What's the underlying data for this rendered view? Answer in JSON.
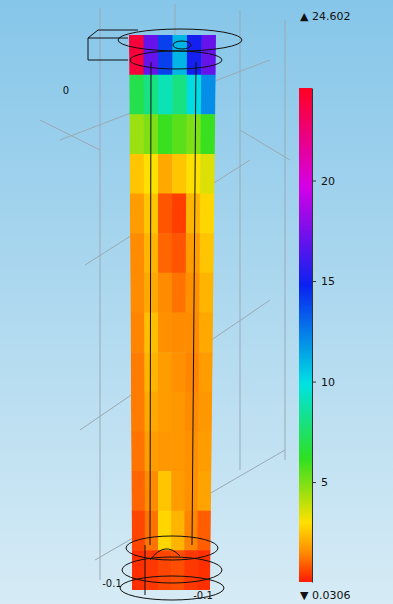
{
  "chart_data": {
    "type": "surface",
    "cells": [
      [
        24,
        17,
        14,
        11,
        15,
        17
      ],
      [
        7,
        8,
        9,
        8,
        10,
        12
      ],
      [
        4.5,
        5,
        6,
        5.5,
        5,
        6
      ],
      [
        2.5,
        3,
        2,
        2.5,
        3,
        3.5
      ],
      [
        1.8,
        2.5,
        0.8,
        0.5,
        2.2,
        2.8
      ],
      [
        1.5,
        2.2,
        1,
        0.8,
        1.8,
        2.5
      ],
      [
        1.5,
        2,
        1.5,
        1.2,
        1.6,
        2.2
      ],
      [
        1.4,
        2.4,
        1.6,
        1.5,
        1.5,
        2
      ],
      [
        1.3,
        2.2,
        1.8,
        1.6,
        1.4,
        1.8
      ],
      [
        1.3,
        2,
        1.8,
        1.7,
        1.5,
        1.7
      ],
      [
        1.2,
        1.8,
        1.7,
        1.7,
        1.6,
        1.8
      ],
      [
        1,
        1.5,
        2.5,
        1.8,
        1.6,
        1.9
      ],
      [
        0.6,
        1.2,
        2.8,
        2.2,
        1.4,
        0.9
      ],
      [
        0.3,
        0.4,
        0.6,
        0.7,
        0.4,
        0.3
      ]
    ],
    "colorbar": {
      "range": [
        {
          "value": 0.0306,
          "label": "▼ 0.0306"
        },
        {
          "value": 24.602,
          "label": "▲ 24.602"
        }
      ],
      "ticks": [
        5,
        10,
        15,
        20
      ]
    },
    "xticks": [
      -0.1
    ],
    "yticks": [
      -0.1
    ],
    "zticks": [
      0
    ]
  }
}
